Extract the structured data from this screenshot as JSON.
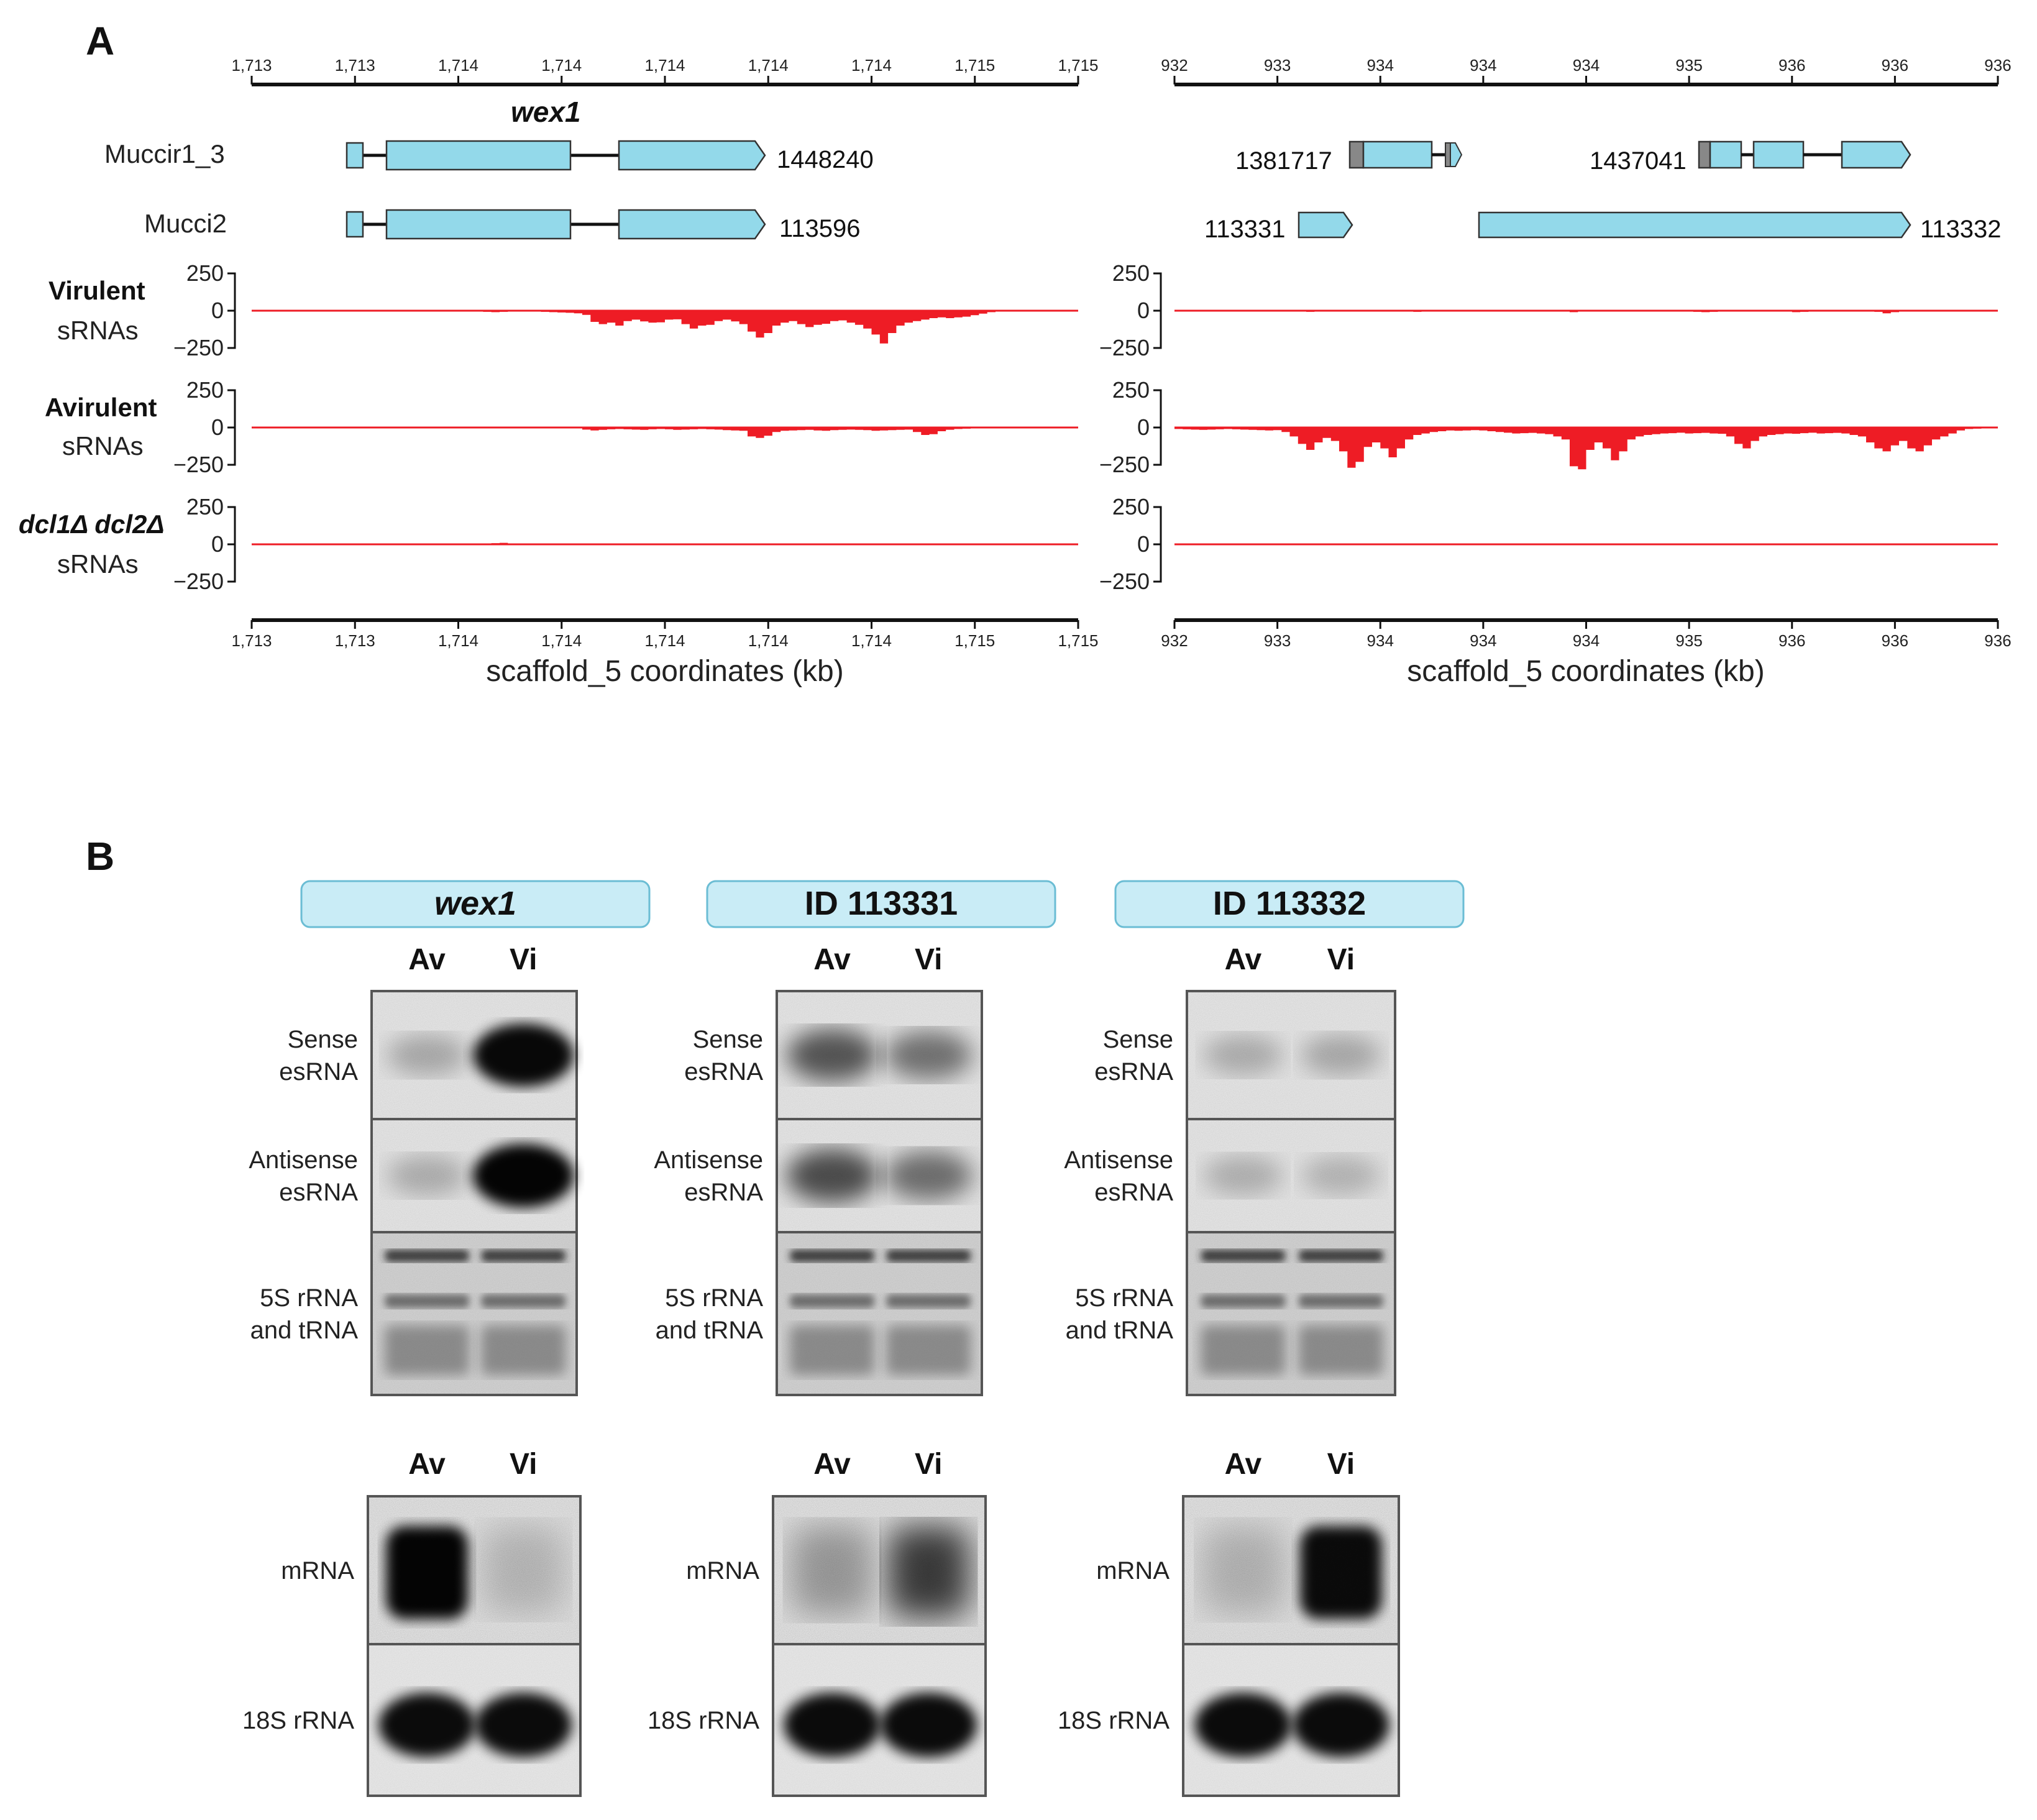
{
  "panels": {
    "a_letter": "A",
    "b_letter": "B"
  },
  "panel_a": {
    "left": {
      "coord_ticks": [
        "1,713",
        "1,713",
        "1,714",
        "1,714",
        "1,714",
        "1,714",
        "1,714",
        "1,715",
        "1,715"
      ],
      "axis_title": "scaffold_5 coordinates (kb)",
      "gene_title": "wex1",
      "tracks": [
        {
          "label": "Muccir1_3",
          "gene_id": "1448240"
        },
        {
          "label": "Mucci2",
          "gene_id": "113596"
        }
      ]
    },
    "right": {
      "coord_ticks": [
        "932",
        "933",
        "934",
        "934",
        "934",
        "935",
        "936",
        "936",
        "936"
      ],
      "axis_title": "scaffold_5 coordinates (kb)",
      "muccir_ids": [
        "1381717",
        "1437041"
      ],
      "mucci_ids": [
        "113331",
        "113332"
      ]
    },
    "srna_tracks": [
      {
        "line1": "Virulent",
        "line2": "sRNAs",
        "italic": false
      },
      {
        "line1": "Avirulent",
        "line2": "sRNAs",
        "italic": false
      },
      {
        "line1": "dcl1Δ dcl2Δ",
        "line2": "sRNAs",
        "italic": true
      }
    ],
    "y_ticks": [
      "250",
      "0",
      "−250"
    ]
  },
  "panel_b": {
    "columns": [
      {
        "title": "wex1",
        "italic": true
      },
      {
        "title": "ID 113331",
        "italic": false
      },
      {
        "title": "ID 113332",
        "italic": false
      }
    ],
    "lanes": [
      "Av",
      "Vi"
    ],
    "top_rows": [
      {
        "line1": "Sense",
        "line2": "esRNA"
      },
      {
        "line1": "Antisense",
        "line2": "esRNA"
      },
      {
        "line1": "5S rRNA",
        "line2": "and tRNA"
      }
    ],
    "bottom_rows": [
      "mRNA",
      "18S rRNA"
    ]
  },
  "colors": {
    "gene_fill": "#93d9ea",
    "utr_fill": "#888888",
    "srna_red": "#ee1c25",
    "title_box": "#c9ecf6"
  },
  "srna_coverage": {
    "units": "read count (negative = antisense strand)",
    "left_virulent": [
      0,
      0,
      0,
      0,
      0,
      0,
      0,
      0,
      0,
      0,
      0,
      0,
      0,
      0,
      0,
      0,
      0,
      0,
      0,
      0,
      0,
      0,
      0,
      0,
      0,
      0,
      0,
      0,
      -8,
      -10,
      -8,
      -6,
      -6,
      -5,
      -6,
      -8,
      -10,
      -12,
      -14,
      -18,
      -28,
      -75,
      -90,
      -80,
      -100,
      -70,
      -60,
      -72,
      -80,
      -78,
      -60,
      -58,
      -90,
      -120,
      -100,
      -95,
      -70,
      -60,
      -72,
      -90,
      -140,
      -180,
      -150,
      -100,
      -80,
      -70,
      -90,
      -110,
      -95,
      -88,
      -70,
      -65,
      -80,
      -95,
      -120,
      -160,
      -220,
      -150,
      -100,
      -80,
      -70,
      -60,
      -50,
      -45,
      -50,
      -45,
      -40,
      -30,
      -20,
      -10,
      0,
      0,
      0,
      0,
      0,
      0,
      0,
      0,
      0,
      0
    ],
    "left_avirulent": [
      0,
      0,
      0,
      0,
      0,
      0,
      0,
      0,
      0,
      0,
      0,
      0,
      0,
      0,
      0,
      0,
      0,
      0,
      0,
      0,
      0,
      0,
      0,
      0,
      0,
      0,
      0,
      0,
      0,
      0,
      0,
      0,
      0,
      0,
      0,
      0,
      0,
      0,
      0,
      0,
      -14,
      -20,
      -16,
      -12,
      -10,
      -12,
      -14,
      -16,
      -12,
      -10,
      -12,
      -16,
      -14,
      -12,
      -10,
      -12,
      -14,
      -18,
      -20,
      -22,
      -60,
      -70,
      -55,
      -30,
      -22,
      -20,
      -18,
      -16,
      -20,
      -22,
      -18,
      -16,
      -14,
      -16,
      -18,
      -22,
      -20,
      -18,
      -16,
      -14,
      -30,
      -50,
      -45,
      -25,
      -15,
      -10,
      -8,
      -6,
      -5,
      -4,
      -3,
      -2,
      0,
      0,
      0,
      0,
      0,
      0,
      0,
      0
    ],
    "left_dcl": [
      0,
      0,
      0,
      0,
      0,
      0,
      0,
      0,
      0,
      0,
      0,
      0,
      0,
      0,
      0,
      0,
      0,
      0,
      0,
      0,
      0,
      0,
      0,
      0,
      0,
      0,
      0,
      0,
      0,
      8,
      10,
      6,
      0,
      0,
      0,
      0,
      0,
      0,
      0,
      0,
      0,
      0,
      0,
      0,
      0,
      0,
      0,
      0,
      0,
      0,
      0,
      0,
      0,
      0,
      0,
      0,
      0,
      0,
      0,
      0,
      0,
      0,
      0,
      0,
      0,
      0,
      0,
      0,
      0,
      0,
      0,
      0,
      0,
      0,
      0,
      0,
      0,
      0,
      0,
      0,
      0,
      0,
      0,
      0,
      0,
      0,
      0,
      0,
      0,
      0,
      0,
      0,
      0,
      0,
      0,
      0,
      0,
      0,
      0,
      0
    ],
    "right_virulent": [
      0,
      0,
      0,
      0,
      0,
      0,
      0,
      0,
      0,
      0,
      0,
      0,
      0,
      0,
      0,
      0,
      -8,
      -6,
      -4,
      0,
      0,
      0,
      0,
      0,
      0,
      0,
      0,
      0,
      -6,
      -8,
      -6,
      0,
      0,
      0,
      0,
      0,
      0,
      0,
      0,
      0,
      0,
      0,
      0,
      0,
      0,
      0,
      0,
      -6,
      -10,
      -6,
      0,
      0,
      0,
      0,
      0,
      0,
      0,
      0,
      0,
      0,
      0,
      0,
      0,
      -8,
      -10,
      -8,
      0,
      0,
      0,
      0,
      0,
      0,
      0,
      0,
      0,
      -10,
      -8,
      0,
      0,
      0,
      0,
      0,
      0,
      0,
      0,
      -8,
      -18,
      -10,
      0,
      0,
      0,
      0,
      0,
      0,
      0,
      0,
      0,
      0,
      0,
      0
    ],
    "right_avirulent": [
      -10,
      -12,
      -14,
      -16,
      -14,
      -12,
      -10,
      -12,
      -14,
      -16,
      -18,
      -20,
      -18,
      -30,
      -60,
      -110,
      -150,
      -100,
      -70,
      -90,
      -160,
      -270,
      -230,
      -130,
      -100,
      -140,
      -200,
      -140,
      -80,
      -50,
      -40,
      -30,
      -25,
      -20,
      -22,
      -20,
      -18,
      -20,
      -25,
      -30,
      -35,
      -40,
      -38,
      -36,
      -40,
      -45,
      -60,
      -80,
      -260,
      -280,
      -150,
      -100,
      -140,
      -220,
      -160,
      -80,
      -60,
      -50,
      -45,
      -40,
      -38,
      -35,
      -40,
      -38,
      -36,
      -40,
      -42,
      -60,
      -110,
      -140,
      -90,
      -60,
      -50,
      -45,
      -40,
      -42,
      -38,
      -35,
      -40,
      -38,
      -36,
      -40,
      -50,
      -60,
      -100,
      -140,
      -160,
      -120,
      -90,
      -140,
      -160,
      -120,
      -80,
      -60,
      -40,
      -20,
      -10,
      -8,
      -6,
      -4
    ],
    "right_dcl": [
      0,
      0,
      0,
      0,
      0,
      0,
      0,
      0,
      0,
      0,
      0,
      0,
      0,
      0,
      0,
      0,
      0,
      0,
      0,
      0,
      0,
      0,
      0,
      0,
      0,
      0,
      0,
      0,
      0,
      0,
      0,
      0,
      0,
      0,
      0,
      0,
      0,
      0,
      0,
      0,
      0,
      0,
      0,
      0,
      0,
      0,
      0,
      0,
      0,
      0,
      0,
      0,
      0,
      0,
      0,
      0,
      0,
      0,
      0,
      0,
      0,
      0,
      0,
      0,
      0,
      0,
      0,
      0,
      0,
      0,
      0,
      0,
      0,
      0,
      0,
      0,
      0,
      0,
      0,
      0,
      0,
      0,
      0,
      0,
      0,
      0,
      0,
      0,
      0,
      0,
      0,
      0,
      0,
      0,
      0,
      0,
      0,
      0,
      0,
      0
    ]
  }
}
